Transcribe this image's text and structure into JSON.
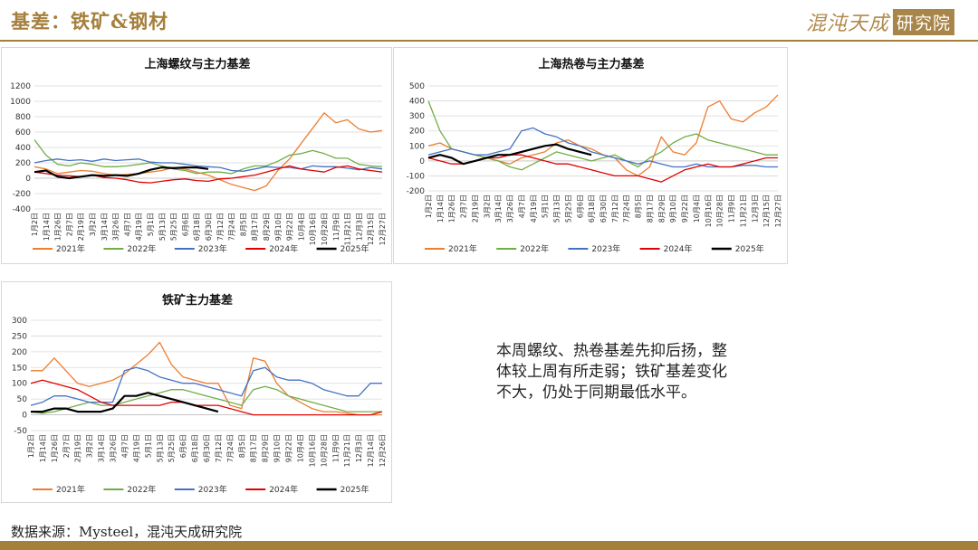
{
  "header": {
    "title": "基差：铁矿&钢材",
    "brand_text": "混沌天成",
    "brand_box": "研究院"
  },
  "commentary": "本周螺纹、热卷基差先抑后扬，整体较上周有所走弱；铁矿基差变化不大，仍处于同期最低水平。",
  "source": "数据来源：Mysteel，混沌天成研究院",
  "colors": {
    "accent": "#a57f3c",
    "2021": "#ed7d31",
    "2022": "#70ad47",
    "2023": "#4472c4",
    "2024": "#e00000",
    "2025": "#000000"
  },
  "chart_data": [
    {
      "id": "rebar",
      "type": "line",
      "title": "上海螺纹与主力基差",
      "ylim": [
        -400,
        1200
      ],
      "yticks": [
        -400,
        -200,
        0,
        200,
        400,
        600,
        800,
        1000,
        1200
      ],
      "x_labels": [
        "1月2日",
        "1月14日",
        "1月26日",
        "2月7日",
        "2月19日",
        "3月2日",
        "3月14日",
        "3月26日",
        "4月7日",
        "4月19日",
        "5月1日",
        "5月13日",
        "5月25日",
        "6月6日",
        "6月18日",
        "6月30日",
        "7月12日",
        "7月24日",
        "8月5日",
        "8月17日",
        "8月29日",
        "9月10日",
        "9月22日",
        "10月4日",
        "10月16日",
        "10月28日",
        "11月9日",
        "11月21日",
        "12月3日",
        "12月15日",
        "12月27日"
      ],
      "grid": "horizontal",
      "legend": "bottom",
      "series": [
        {
          "name": "2021年",
          "color": "#ed7d31",
          "values": [
            150,
            120,
            60,
            80,
            100,
            90,
            60,
            40,
            50,
            60,
            80,
            100,
            140,
            120,
            80,
            40,
            -20,
            -80,
            -120,
            -160,
            -100,
            100,
            250,
            450,
            650,
            850,
            720,
            760,
            640,
            600,
            620
          ]
        },
        {
          "name": "2022年",
          "color": "#70ad47",
          "values": [
            500,
            300,
            180,
            160,
            200,
            180,
            150,
            150,
            160,
            180,
            200,
            160,
            120,
            100,
            60,
            80,
            80,
            60,
            120,
            160,
            160,
            220,
            300,
            320,
            360,
            320,
            260,
            260,
            180,
            160,
            150
          ]
        },
        {
          "name": "2023年",
          "color": "#4472c4",
          "values": [
            200,
            230,
            250,
            230,
            240,
            220,
            250,
            230,
            240,
            250,
            210,
            200,
            200,
            180,
            160,
            150,
            140,
            100,
            90,
            120,
            150,
            140,
            140,
            120,
            160,
            150,
            150,
            130,
            110,
            140,
            120
          ]
        },
        {
          "name": "2024年",
          "color": "#e00000",
          "values": [
            80,
            60,
            40,
            30,
            20,
            40,
            10,
            0,
            -20,
            -50,
            -60,
            -40,
            -20,
            -10,
            -30,
            -40,
            -10,
            0,
            20,
            40,
            80,
            120,
            160,
            120,
            100,
            80,
            140,
            160,
            120,
            100,
            80
          ]
        },
        {
          "name": "2025年",
          "color": "#000000",
          "values": [
            80,
            100,
            20,
            0,
            20,
            40,
            30,
            40,
            30,
            60,
            110,
            140,
            130,
            140,
            140,
            120
          ]
        }
      ]
    },
    {
      "id": "hrc",
      "type": "line",
      "title": "上海热卷与主力基差",
      "ylim": [
        -200,
        500
      ],
      "yticks": [
        -200,
        -100,
        0,
        100,
        200,
        300,
        400,
        500
      ],
      "x_labels": [
        "1月2日",
        "1月14日",
        "1月26日",
        "2月7日",
        "2月19日",
        "3月2日",
        "3月14日",
        "3月26日",
        "4月7日",
        "4月19日",
        "5月1日",
        "5月13日",
        "5月25日",
        "6月6日",
        "6月18日",
        "6月30日",
        "7月12日",
        "7月24日",
        "8月5日",
        "8月17日",
        "8月29日",
        "9月10日",
        "9月22日",
        "10月4日",
        "10月16日",
        "10月28日",
        "11月9日",
        "11月21日",
        "12月3日",
        "12月15日",
        "12月27日"
      ],
      "grid": "horizontal",
      "legend": "bottom",
      "series": [
        {
          "name": "2021年",
          "color": "#ed7d31",
          "values": [
            100,
            120,
            80,
            60,
            40,
            20,
            0,
            -20,
            20,
            40,
            60,
            120,
            140,
            100,
            80,
            40,
            20,
            -60,
            -100,
            -40,
            160,
            60,
            40,
            120,
            360,
            400,
            280,
            260,
            320,
            360,
            440
          ]
        },
        {
          "name": "2022年",
          "color": "#70ad47",
          "values": [
            400,
            200,
            80,
            60,
            40,
            20,
            0,
            -40,
            -60,
            -20,
            20,
            60,
            40,
            20,
            0,
            20,
            40,
            0,
            -40,
            20,
            60,
            120,
            160,
            180,
            140,
            120,
            100,
            80,
            60,
            40,
            40
          ]
        },
        {
          "name": "2023年",
          "color": "#4472c4",
          "values": [
            40,
            60,
            80,
            60,
            40,
            40,
            60,
            80,
            200,
            220,
            180,
            160,
            120,
            100,
            60,
            40,
            20,
            0,
            -20,
            0,
            -20,
            -40,
            -40,
            -20,
            -40,
            -40,
            -40,
            -30,
            -30,
            -40,
            -40
          ]
        },
        {
          "name": "2024年",
          "color": "#e00000",
          "values": [
            20,
            0,
            -20,
            -20,
            0,
            20,
            20,
            40,
            40,
            20,
            0,
            -20,
            -20,
            -40,
            -60,
            -80,
            -100,
            -100,
            -100,
            -120,
            -140,
            -100,
            -60,
            -40,
            -20,
            -40,
            -40,
            -20,
            0,
            20,
            20
          ]
        },
        {
          "name": "2025年",
          "color": "#000000",
          "values": [
            20,
            40,
            20,
            -20,
            0,
            20,
            40,
            40,
            60,
            80,
            100,
            110,
            80,
            60,
            40
          ]
        }
      ]
    },
    {
      "id": "iron-ore",
      "type": "line",
      "title": "铁矿主力基差",
      "ylim": [
        -50,
        300
      ],
      "yticks": [
        -50,
        0,
        50,
        100,
        150,
        200,
        250,
        300
      ],
      "x_labels": [
        "1月2日",
        "1月14日",
        "1月26日",
        "2月7日",
        "2月19日",
        "3月2日",
        "3月14日",
        "3月26日",
        "4月7日",
        "4月19日",
        "5月1日",
        "5月13日",
        "5月25日",
        "6月6日",
        "6月18日",
        "6月30日",
        "7月12日",
        "7月24日",
        "8月5日",
        "8月17日",
        "8月29日",
        "9月10日",
        "9月22日",
        "10月4日",
        "10月16日",
        "10月28日",
        "11月9日",
        "11月21日",
        "12月3日",
        "12月14日",
        "12月26日"
      ],
      "grid": "horizontal",
      "legend": "bottom",
      "series": [
        {
          "name": "2021年",
          "color": "#ed7d31",
          "values": [
            140,
            140,
            180,
            140,
            100,
            90,
            100,
            110,
            130,
            160,
            190,
            230,
            160,
            120,
            110,
            100,
            100,
            30,
            20,
            180,
            170,
            100,
            60,
            40,
            20,
            10,
            10,
            5,
            0,
            0,
            0
          ]
        },
        {
          "name": "2022年",
          "color": "#70ad47",
          "values": [
            10,
            5,
            10,
            20,
            30,
            40,
            30,
            30,
            40,
            50,
            60,
            70,
            80,
            80,
            70,
            60,
            50,
            40,
            30,
            80,
            90,
            80,
            60,
            50,
            40,
            30,
            20,
            10,
            10,
            10,
            10
          ]
        },
        {
          "name": "2023年",
          "color": "#4472c4",
          "values": [
            30,
            40,
            60,
            60,
            50,
            40,
            40,
            40,
            140,
            150,
            140,
            120,
            110,
            100,
            100,
            90,
            80,
            70,
            60,
            140,
            150,
            120,
            110,
            110,
            100,
            80,
            70,
            60,
            60,
            100,
            100
          ]
        },
        {
          "name": "2024年",
          "color": "#e00000",
          "values": [
            100,
            110,
            100,
            90,
            80,
            60,
            40,
            30,
            30,
            30,
            30,
            30,
            40,
            40,
            30,
            30,
            30,
            20,
            10,
            0,
            0,
            0,
            0,
            0,
            0,
            0,
            0,
            0,
            0,
            0,
            10
          ]
        },
        {
          "name": "2025年",
          "color": "#000000",
          "values": [
            10,
            10,
            20,
            20,
            10,
            10,
            10,
            20,
            60,
            60,
            70,
            60,
            50,
            40,
            30,
            20,
            10
          ]
        }
      ]
    }
  ]
}
